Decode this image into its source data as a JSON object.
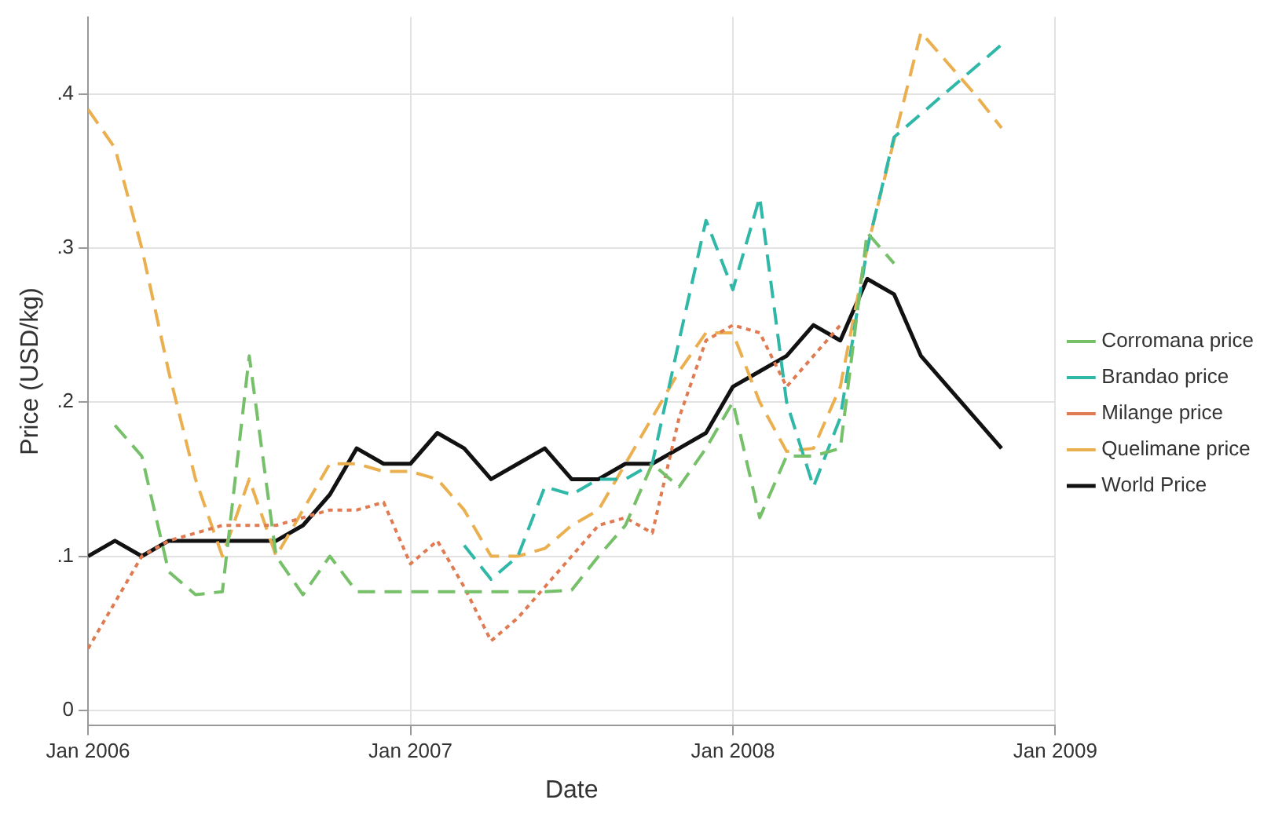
{
  "chart_data": {
    "type": "line",
    "xlabel": "Date",
    "ylabel": "Price (USD/kg)",
    "xlim": [
      "2006-01",
      "2009-01"
    ],
    "xticks": [
      {
        "value": "2006-01",
        "label": "Jan 2006"
      },
      {
        "value": "2007-01",
        "label": "Jan 2007"
      },
      {
        "value": "2008-01",
        "label": "Jan 2008"
      },
      {
        "value": "2009-01",
        "label": "Jan 2009"
      }
    ],
    "ylim": [
      -0.01,
      0.45
    ],
    "yticks": [
      0,
      {
        "value": 0.1,
        "label": ".1"
      },
      {
        "value": 0.2,
        "label": ".2"
      },
      {
        "value": 0.3,
        "label": ".3"
      },
      {
        "value": 0.4,
        "label": ".4"
      }
    ],
    "grid": true,
    "legend": "right",
    "marker": "none",
    "series": [
      {
        "name": "Corromana price",
        "color": "#77c06a",
        "line_style": "dashed",
        "x": [
          "2006-02",
          "2006-03",
          "2006-04",
          "2006-05",
          "2006-06",
          "2006-07",
          "2006-08",
          "2006-09",
          "2006-10",
          "2006-11",
          "2006-12",
          "2007-01",
          "2007-02",
          "2007-03",
          "2007-04",
          "2007-05",
          "2007-06",
          "2007-07",
          "2007-08",
          "2007-09",
          "2007-10",
          "2007-11",
          "2007-12",
          "2008-01",
          "2008-02",
          "2008-03",
          "2008-04",
          "2008-05",
          "2008-06",
          "2008-07"
        ],
        "values": [
          0.185,
          0.165,
          0.09,
          0.075,
          0.077,
          0.23,
          0.1,
          0.075,
          0.1,
          0.077,
          0.077,
          0.077,
          0.077,
          0.077,
          0.077,
          0.077,
          0.077,
          0.078,
          0.1,
          0.12,
          0.16,
          0.145,
          0.17,
          0.2,
          0.125,
          0.165,
          0.165,
          0.17,
          0.31,
          0.29
        ]
      },
      {
        "name": "Brandao price",
        "color": "#2fb8a8",
        "line_style": "dashed",
        "x": [
          "2007-03",
          "2007-04",
          "2007-05",
          "2007-06",
          "2007-07",
          "2007-08",
          "2007-09",
          "2007-10",
          "2007-11",
          "2007-12",
          "2008-01",
          "2008-02",
          "2008-03",
          "2008-04",
          "2008-05",
          "2008-06",
          "2008-07",
          "2008-11"
        ],
        "values": [
          0.107,
          0.085,
          0.1,
          0.145,
          0.14,
          0.15,
          0.15,
          0.16,
          0.24,
          0.318,
          0.273,
          0.333,
          0.2,
          0.145,
          0.19,
          0.3,
          0.372,
          0.432
        ]
      },
      {
        "name": "Milange price",
        "color": "#e07a50",
        "line_style": "dotted",
        "x": [
          "2006-01",
          "2006-02",
          "2006-03",
          "2006-04",
          "2006-05",
          "2006-06",
          "2006-07",
          "2006-08",
          "2006-09",
          "2006-10",
          "2006-11",
          "2006-12",
          "2007-01",
          "2007-02",
          "2007-03",
          "2007-04",
          "2007-05",
          "2007-06",
          "2007-07",
          "2007-08",
          "2007-09",
          "2007-10",
          "2007-11",
          "2007-12",
          "2008-01",
          "2008-02",
          "2008-03",
          "2008-04",
          "2008-05"
        ],
        "values": [
          0.04,
          0.07,
          0.1,
          0.11,
          0.115,
          0.12,
          0.12,
          0.12,
          0.125,
          0.13,
          0.13,
          0.135,
          0.095,
          0.11,
          0.08,
          0.045,
          0.06,
          0.08,
          0.1,
          0.12,
          0.125,
          0.115,
          0.19,
          0.24,
          0.25,
          0.245,
          0.21,
          0.23,
          0.25
        ]
      },
      {
        "name": "Quelimane price",
        "color": "#eab050",
        "line_style": "dashed",
        "x": [
          "2006-01",
          "2006-02",
          "2006-03",
          "2006-04",
          "2006-05",
          "2006-06",
          "2006-07",
          "2006-08",
          "2006-09",
          "2006-10",
          "2006-11",
          "2006-12",
          "2007-01",
          "2007-02",
          "2007-03",
          "2007-04",
          "2007-05",
          "2007-06",
          "2007-07",
          "2007-08",
          "2007-09",
          "2007-10",
          "2007-11",
          "2007-12",
          "2008-01",
          "2008-02",
          "2008-03",
          "2008-04",
          "2008-05",
          "2008-06",
          "2008-07",
          "2008-08",
          "2008-09",
          "2008-10",
          "2008-11"
        ],
        "values": [
          0.39,
          0.365,
          0.3,
          0.22,
          0.15,
          0.1,
          0.15,
          0.1,
          0.13,
          0.16,
          0.16,
          0.155,
          0.155,
          0.15,
          0.13,
          0.1,
          0.1,
          0.105,
          0.12,
          0.13,
          0.16,
          0.19,
          0.22,
          0.245,
          0.245,
          0.2,
          0.168,
          0.17,
          0.21,
          0.3,
          0.37,
          0.44,
          0.42,
          0.4,
          0.378
        ]
      },
      {
        "name": "World Price",
        "color": "#111111",
        "line_style": "solid",
        "x": [
          "2006-01",
          "2006-02",
          "2006-03",
          "2006-04",
          "2006-05",
          "2006-06",
          "2006-07",
          "2006-08",
          "2006-09",
          "2006-10",
          "2006-11",
          "2006-12",
          "2007-01",
          "2007-02",
          "2007-03",
          "2007-04",
          "2007-05",
          "2007-06",
          "2007-07",
          "2007-08",
          "2007-09",
          "2007-10",
          "2007-11",
          "2007-12",
          "2008-01",
          "2008-02",
          "2008-03",
          "2008-04",
          "2008-05",
          "2008-06",
          "2008-07",
          "2008-08",
          "2008-09",
          "2008-10",
          "2008-11"
        ],
        "values": [
          0.1,
          0.11,
          0.1,
          0.11,
          0.11,
          0.11,
          0.11,
          0.11,
          0.12,
          0.14,
          0.17,
          0.16,
          0.16,
          0.18,
          0.17,
          0.15,
          0.16,
          0.17,
          0.15,
          0.15,
          0.16,
          0.16,
          0.17,
          0.18,
          0.21,
          0.22,
          0.23,
          0.25,
          0.24,
          0.28,
          0.27,
          0.23,
          0.21,
          0.19,
          0.17
        ]
      }
    ]
  }
}
